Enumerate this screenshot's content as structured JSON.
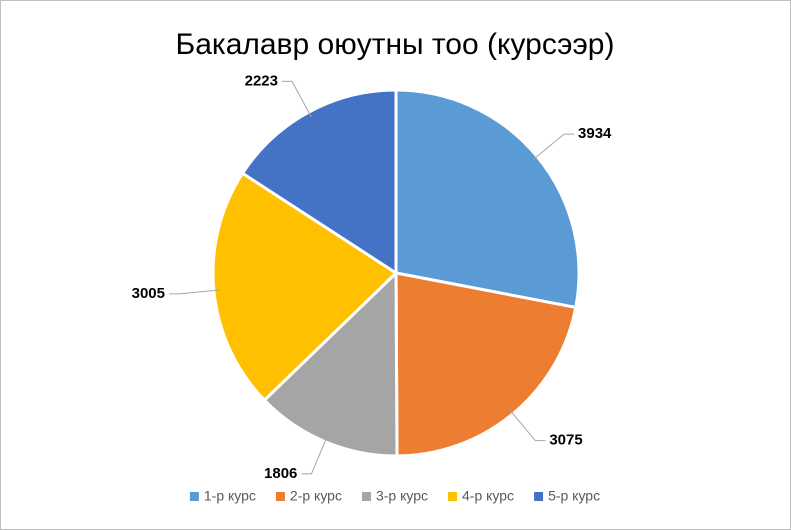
{
  "chart_data": {
    "type": "pie",
    "title": "Бакалавр оюутны тоо (курсээр)",
    "categories": [
      "1-р курс",
      "2-р курс",
      "3-р курс",
      "4-р курс",
      "5-р курс"
    ],
    "values": [
      3934,
      3075,
      1806,
      3005,
      2223
    ],
    "colors": [
      "#5b9bd5",
      "#ed7d31",
      "#a5a5a5",
      "#ffc000",
      "#4472c4"
    ],
    "legend": "bottom"
  }
}
